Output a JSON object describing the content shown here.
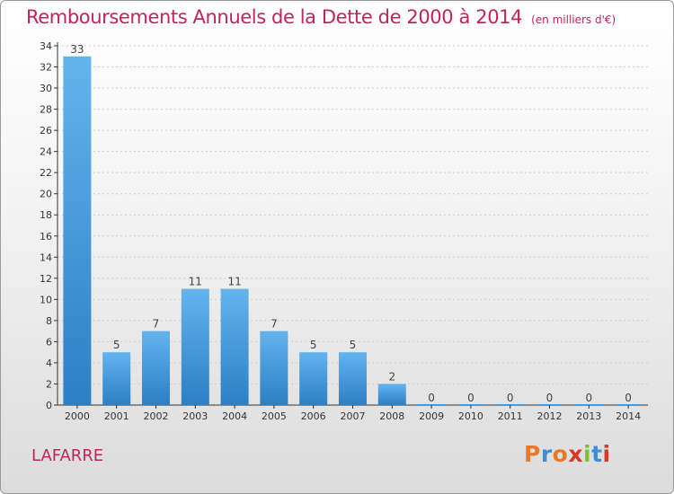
{
  "header": {
    "title": "Remboursements Annuels de la Dette de 2000 à 2014",
    "subtitle": "(en milliers d'€)"
  },
  "footer": {
    "town": "LAFARRE",
    "logo_text": "Proxiti",
    "logo_colors": [
      "#e8792b",
      "#3a8fd6",
      "#e8792b",
      "#d9362e",
      "#7cbf3a",
      "#3a8fd6",
      "#d9362e"
    ]
  },
  "colors": {
    "title": "#c0245c",
    "bar_light": "#63b4ee",
    "bar_dark": "#2b7fc4",
    "axis": "#333333",
    "grid": "#cccccc"
  },
  "chart_data": {
    "type": "bar",
    "title": "Remboursements Annuels de la Dette de 2000 à 2014",
    "subtitle": "(en milliers d'€)",
    "categories": [
      "2000",
      "2001",
      "2002",
      "2003",
      "2004",
      "2005",
      "2006",
      "2007",
      "2008",
      "2009",
      "2010",
      "2011",
      "2012",
      "2013",
      "2014"
    ],
    "values": [
      33,
      5,
      7,
      11,
      11,
      7,
      5,
      5,
      2,
      0,
      0,
      0,
      0,
      0,
      0
    ],
    "ylim": [
      0,
      34
    ],
    "yticks": [
      0,
      2,
      4,
      6,
      8,
      10,
      12,
      14,
      16,
      18,
      20,
      22,
      24,
      26,
      28,
      30,
      32,
      34
    ],
    "grid": true,
    "data_labels": true
  }
}
